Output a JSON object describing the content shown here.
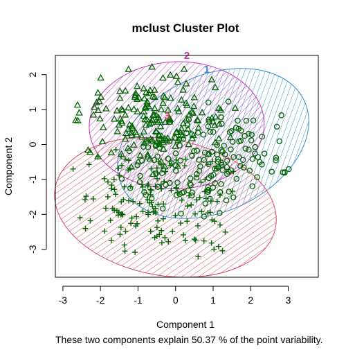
{
  "chart_data": {
    "type": "scatter",
    "title": "mclust Cluster Plot",
    "xlabel": "Component 1",
    "ylabel": "Component 2",
    "subtitle": "These two components explain 50.37 % of the point variability.",
    "xlim": [
      -3.2,
      3.8
    ],
    "ylim": [
      -3.8,
      2.55
    ],
    "x_ticks": [
      -3,
      -2,
      -1,
      0,
      1,
      2,
      3
    ],
    "y_ticks": [
      -3,
      -2,
      -1,
      0,
      1,
      2
    ],
    "grid": false,
    "clusters": [
      {
        "name": "1",
        "label": "1",
        "color": "#2f8ed1",
        "center": [
          0.85,
          -0.45
        ],
        "ellipse": {
          "cx": 1.0,
          "cy": 0.03,
          "rx": 2.68,
          "ry": 1.95,
          "angle_deg": -25
        },
        "label_pos": [
          0.83,
          2.05
        ]
      },
      {
        "name": "2",
        "label": "2",
        "color": "#c22fbf",
        "center": [
          -0.6,
          0.7
        ],
        "ellipse": {
          "cx": 0.03,
          "cy": 0.55,
          "rx": 2.33,
          "ry": 1.82,
          "angle_deg": -2
        },
        "label_pos": [
          0.3,
          2.45
        ]
      },
      {
        "name": "3",
        "label": "3",
        "color": "#d8425e",
        "center": [
          -0.5,
          -1.6
        ],
        "ellipse": {
          "cx": -0.27,
          "cy": -1.8,
          "rx": 2.98,
          "ry": 1.95,
          "angle_deg": 10
        },
        "label_pos": [
          -0.22,
          0.72
        ]
      }
    ],
    "points_color": "#006400",
    "point_counts": {
      "1": 160,
      "2": 180,
      "3": 150
    },
    "marker_shapes": {
      "1": "circle",
      "2": "triangle",
      "3": "plus"
    }
  }
}
